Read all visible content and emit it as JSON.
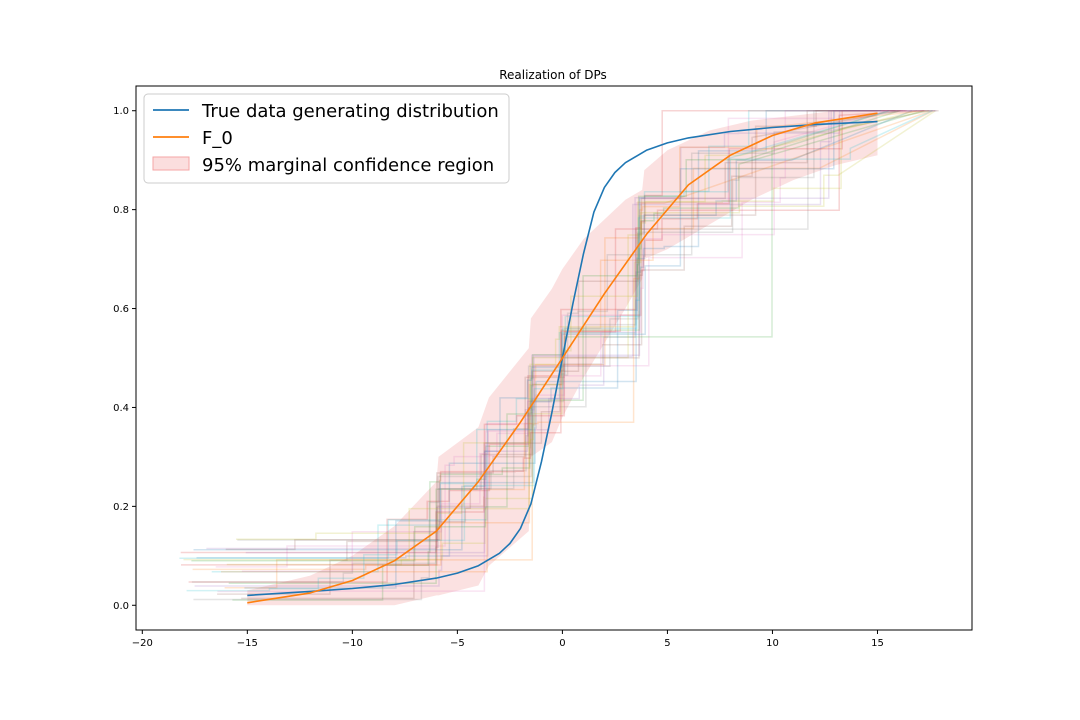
{
  "chart_data": {
    "type": "line",
    "title": "Realization of DPs",
    "xlabel": "",
    "ylabel": "",
    "xlim": [
      -20.3,
      19.5
    ],
    "ylim": [
      -0.05,
      1.05
    ],
    "xticks": [
      -20,
      -15,
      -10,
      -5,
      0,
      5,
      10,
      15
    ],
    "xtick_labels": [
      "−20",
      "−15",
      "−10",
      "−5",
      "0",
      "5",
      "10",
      "15"
    ],
    "yticks": [
      0.0,
      0.2,
      0.4,
      0.6,
      0.8,
      1.0
    ],
    "ytick_labels": [
      "0.0",
      "0.2",
      "0.4",
      "0.6",
      "0.8",
      "1.0"
    ],
    "grid": false,
    "legend_position": "top-left",
    "series": [
      {
        "name": "True data generating distribution",
        "color": "#1f77b4",
        "x": [
          -15,
          -12,
          -10,
          -8,
          -6,
          -5,
          -4,
          -3,
          -2.5,
          -2,
          -1.5,
          -1,
          -0.5,
          0,
          0.5,
          1,
          1.5,
          2,
          2.5,
          3,
          4,
          5,
          6,
          8,
          10,
          12,
          15
        ],
        "y": [
          0.02,
          0.028,
          0.034,
          0.042,
          0.055,
          0.065,
          0.08,
          0.105,
          0.125,
          0.155,
          0.205,
          0.29,
          0.39,
          0.5,
          0.61,
          0.71,
          0.795,
          0.845,
          0.875,
          0.895,
          0.92,
          0.935,
          0.945,
          0.958,
          0.966,
          0.972,
          0.978
        ]
      },
      {
        "name": "F_0",
        "color": "#ff7f0e",
        "x": [
          -15,
          -12,
          -10,
          -8,
          -6,
          -4,
          -2,
          0,
          2,
          4,
          6,
          8,
          10,
          12,
          15
        ],
        "y": [
          0.005,
          0.025,
          0.05,
          0.09,
          0.15,
          0.25,
          0.37,
          0.5,
          0.63,
          0.75,
          0.85,
          0.91,
          0.95,
          0.975,
          0.995
        ]
      }
    ],
    "confidence_region": {
      "name": "95% marginal confidence region",
      "color": "#f8c8c8",
      "x": [
        -15,
        -12,
        -10,
        -8,
        -6,
        -5.9,
        -4,
        -3.5,
        -1.6,
        -1.5,
        -0.5,
        0,
        1,
        2,
        3,
        3.8,
        3.9,
        5,
        7,
        9,
        11,
        13,
        15
      ],
      "lower": [
        0.0,
        0.0,
        0.0,
        0.0,
        0.02,
        0.02,
        0.04,
        0.08,
        0.15,
        0.3,
        0.33,
        0.38,
        0.46,
        0.53,
        0.6,
        0.66,
        0.7,
        0.72,
        0.77,
        0.82,
        0.86,
        0.89,
        0.91
      ],
      "upper": [
        0.03,
        0.06,
        0.1,
        0.16,
        0.25,
        0.3,
        0.36,
        0.42,
        0.52,
        0.58,
        0.64,
        0.68,
        0.74,
        0.78,
        0.82,
        0.84,
        0.88,
        0.92,
        0.96,
        0.98,
        0.99,
        1.0,
        1.0
      ]
    },
    "dp_realizations": {
      "colors": [
        "#1f77b4",
        "#ff7f0e",
        "#2ca02c",
        "#d62728",
        "#9467bd",
        "#8c564b",
        "#e377c2",
        "#7f7f7f",
        "#bcbd22",
        "#17becf"
      ],
      "opacity": 0.2,
      "count": 30
    }
  },
  "legend": {
    "items": [
      {
        "label": "True data generating distribution",
        "kind": "line",
        "color": "#1f77b4"
      },
      {
        "label": "F_0",
        "kind": "line",
        "color": "#ff7f0e"
      },
      {
        "label": "95% marginal confidence region",
        "kind": "patch",
        "color": "#f8c8c8"
      }
    ]
  }
}
